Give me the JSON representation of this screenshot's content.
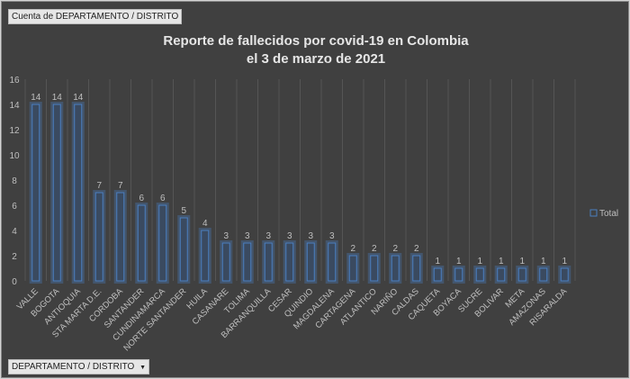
{
  "pivot": {
    "value_field_button": "Cuenta de DEPARTAMENTO / DISTRITO",
    "axis_field_button": "DEPARTAMENTO / DISTRITO",
    "dropdown_icon": "triangle-down-icon"
  },
  "chart_data": {
    "type": "bar",
    "title": [
      "Reporte de fallecidos por covid-19 en Colombia",
      "el 3 de marzo de 2021"
    ],
    "xlabel": "",
    "ylabel": "",
    "ylim": [
      0,
      16
    ],
    "yticks": [
      0,
      2,
      4,
      6,
      8,
      10,
      12,
      14,
      16
    ],
    "grid": "vertical",
    "legend_position": "right",
    "categories": [
      "VALLE",
      "BOGOTA",
      "ANTIOQUIA",
      "STA MARTA D.E.",
      "CORDOBA",
      "SANTANDER",
      "CUNDINAMARCA",
      "NORTE SANTANDER",
      "HUILA",
      "CASANARE",
      "TOLIMA",
      "BARRANQUILLA",
      "CESAR",
      "QUINDIO",
      "MAGDALENA",
      "CARTAGENA",
      "ATLANTICO",
      "NARIÑO",
      "CALDAS",
      "CAQUETA",
      "BOYACA",
      "SUCRE",
      "BOLIVAR",
      "META",
      "AMAZONAS",
      "RISARALDA"
    ],
    "series": [
      {
        "name": "Total",
        "color": "#4a7fc1",
        "values": [
          14,
          14,
          14,
          7,
          7,
          6,
          6,
          5,
          4,
          3,
          3,
          3,
          3,
          3,
          3,
          2,
          2,
          2,
          2,
          1,
          1,
          1,
          1,
          1,
          1,
          1
        ]
      }
    ]
  }
}
